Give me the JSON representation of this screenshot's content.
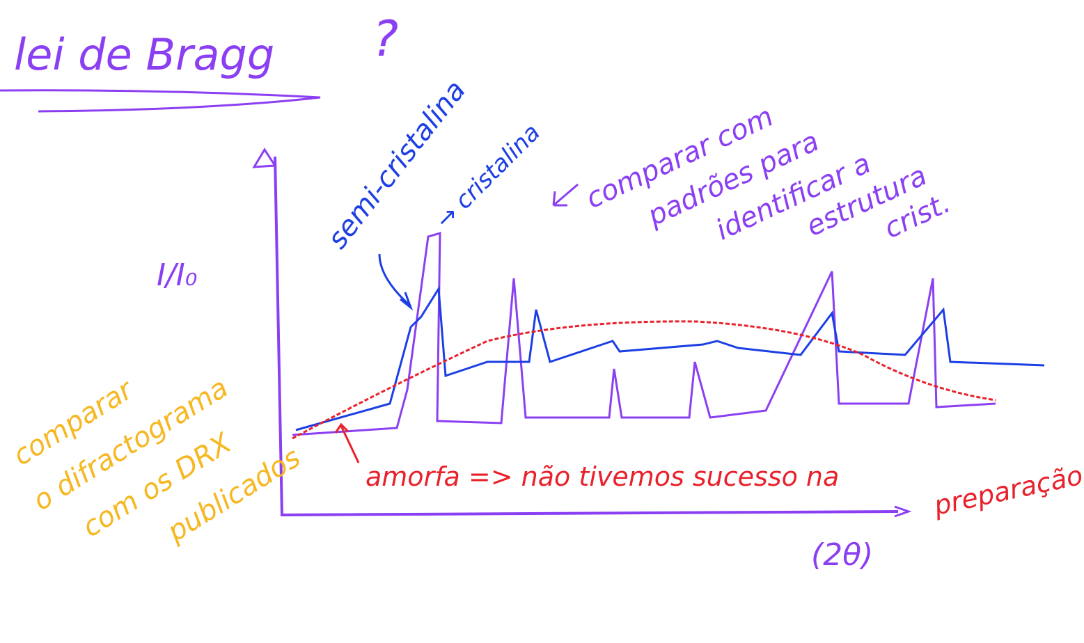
{
  "header": {
    "title": "lei de Bragg",
    "question": "?"
  },
  "axes": {
    "y_label": "I/I₀",
    "x_label": "(2θ)"
  },
  "annotations": {
    "semi": "semi-cristalina",
    "cristalina": "→ cristalina",
    "compare_lines": [
      "comparar com",
      "padrões para",
      "identificar a",
      "estrutura",
      "crist."
    ],
    "amorfa": "amorfa => não tivemos sucesso na",
    "preparacao": "preparação",
    "side_lines": [
      "comparar",
      "o difractograma",
      "com os DRX",
      "publicados"
    ]
  }
}
